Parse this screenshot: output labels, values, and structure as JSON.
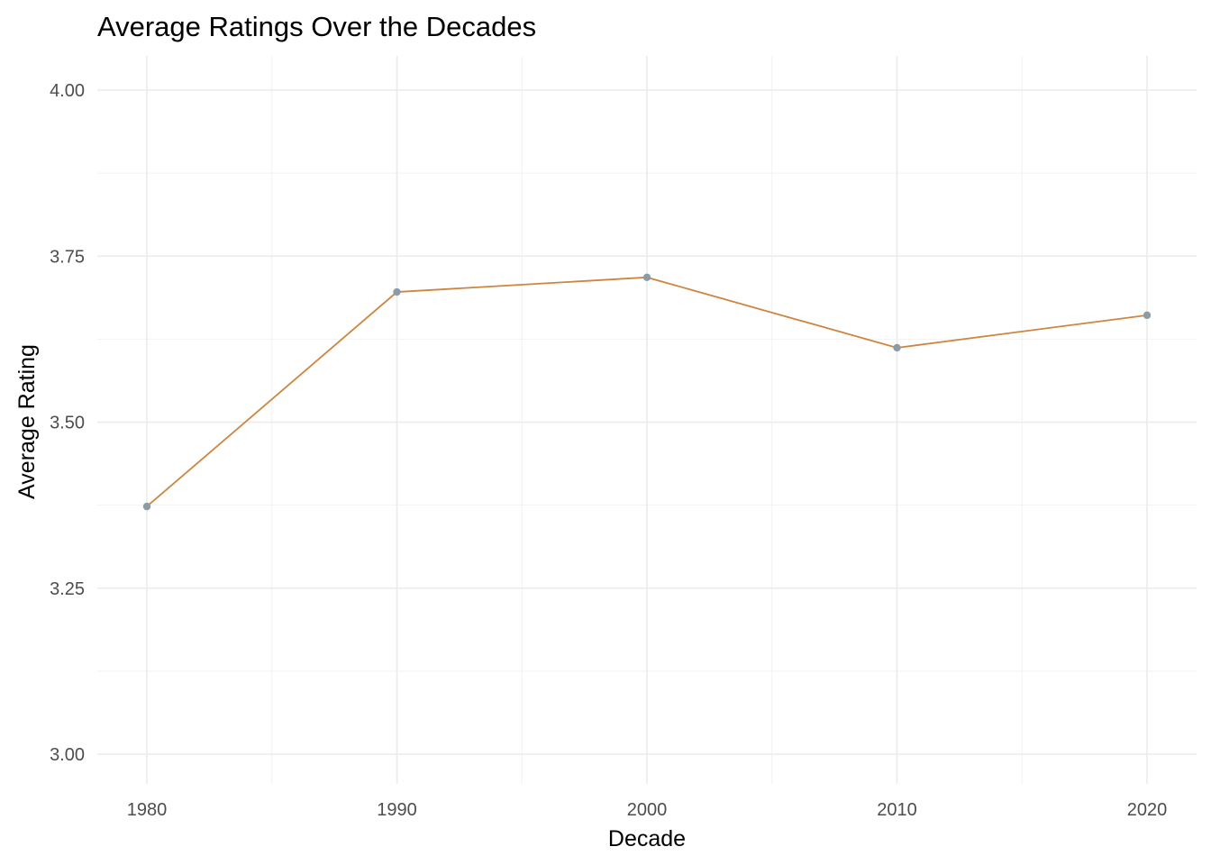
{
  "chart_data": {
    "type": "line",
    "title": "Average Ratings Over the Decades",
    "xlabel": "Decade",
    "ylabel": "Average Rating",
    "x": [
      1980,
      1990,
      2000,
      2010,
      2020
    ],
    "y": [
      3.373,
      3.696,
      3.718,
      3.612,
      3.661
    ],
    "xlim": [
      1980,
      2020
    ],
    "ylim": [
      3.0,
      4.0
    ],
    "x_ticks": [
      "1980",
      "1990",
      "2000",
      "2010",
      "2020"
    ],
    "y_ticks": [
      "3.00",
      "3.25",
      "3.50",
      "3.75",
      "4.00"
    ],
    "grid": true,
    "legend": "none",
    "line_color": "#cd853f",
    "point_color": "#8c9ca6",
    "background": "#ffffff"
  }
}
